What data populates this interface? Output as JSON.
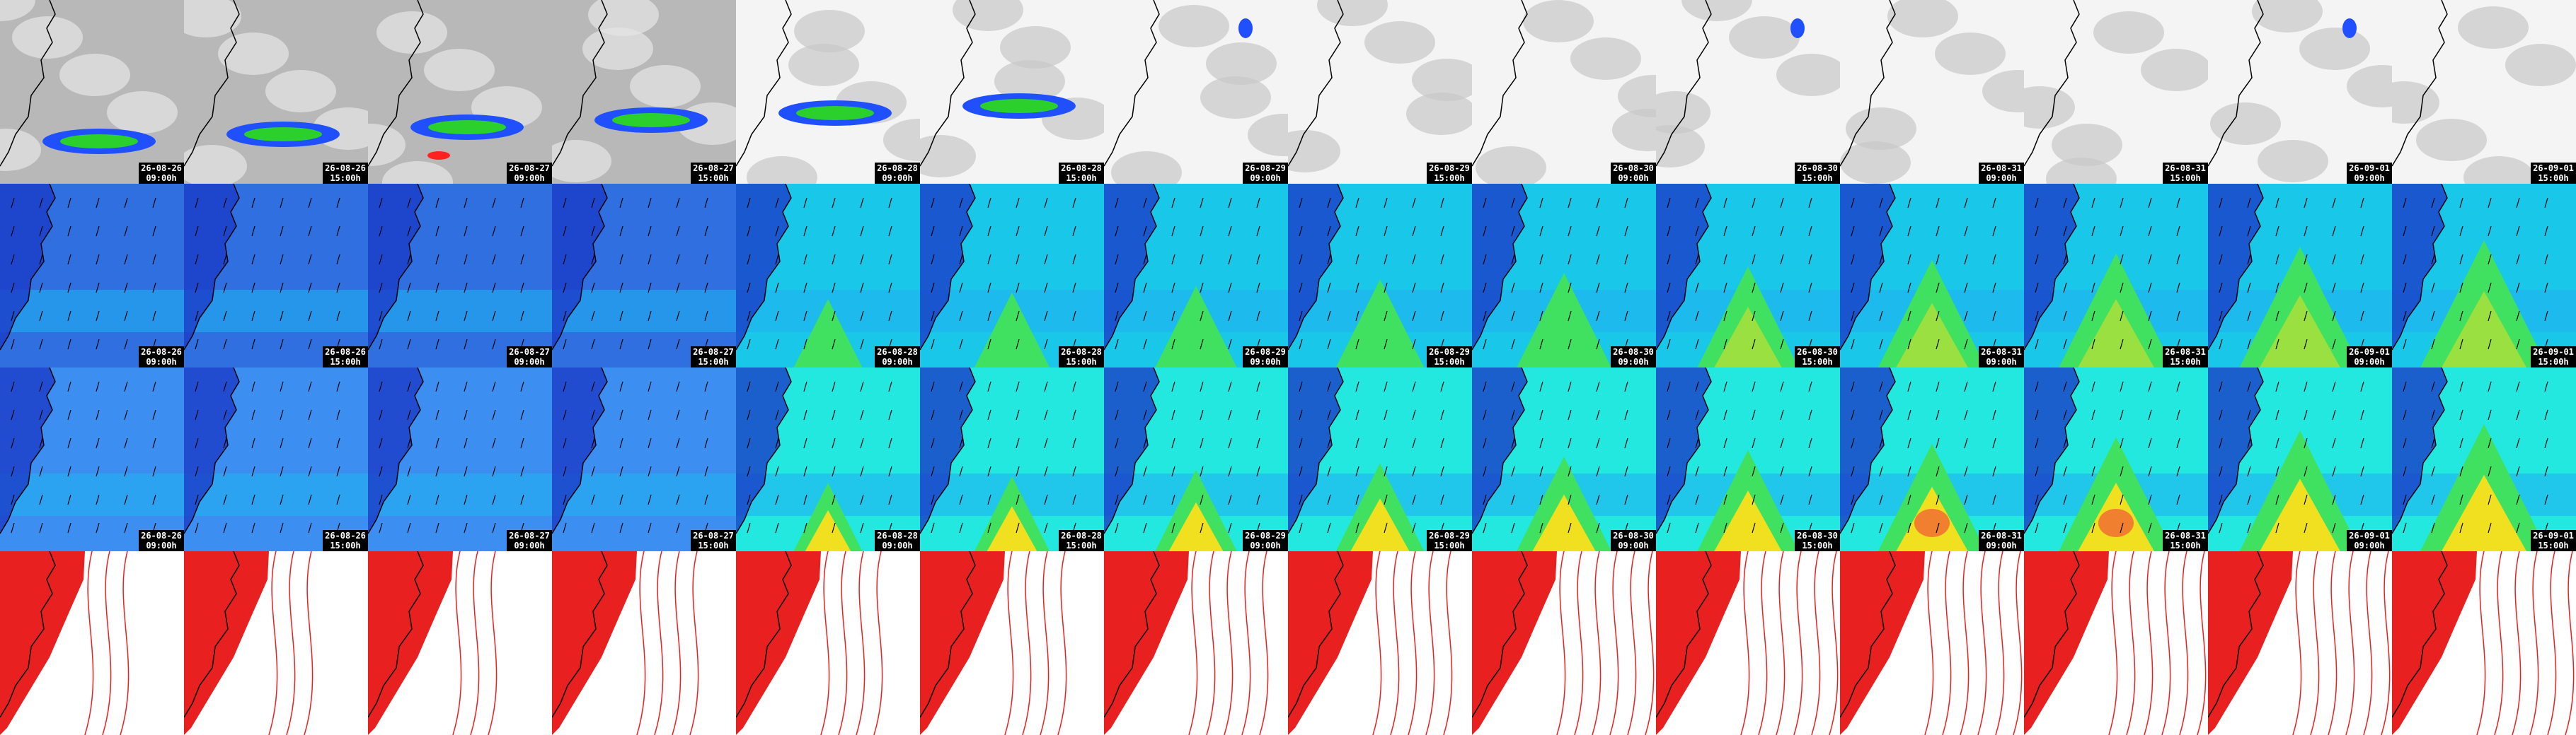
{
  "columns": [
    {
      "date": "26-08-26",
      "time": "09:00h"
    },
    {
      "date": "26-08-26",
      "time": "15:00h"
    },
    {
      "date": "26-08-27",
      "time": "09:00h"
    },
    {
      "date": "26-08-27",
      "time": "15:00h"
    },
    {
      "date": "26-08-28",
      "time": "09:00h"
    },
    {
      "date": "26-08-28",
      "time": "15:00h"
    },
    {
      "date": "26-08-29",
      "time": "09:00h"
    },
    {
      "date": "26-08-29",
      "time": "15:00h"
    },
    {
      "date": "26-08-30",
      "time": "09:00h"
    },
    {
      "date": "26-08-30",
      "time": "15:00h"
    },
    {
      "date": "26-08-31",
      "time": "09:00h"
    },
    {
      "date": "26-08-31",
      "time": "15:00h"
    },
    {
      "date": "26-09-01",
      "time": "09:00h"
    },
    {
      "date": "26-09-01",
      "time": "15:00h"
    }
  ]
}
